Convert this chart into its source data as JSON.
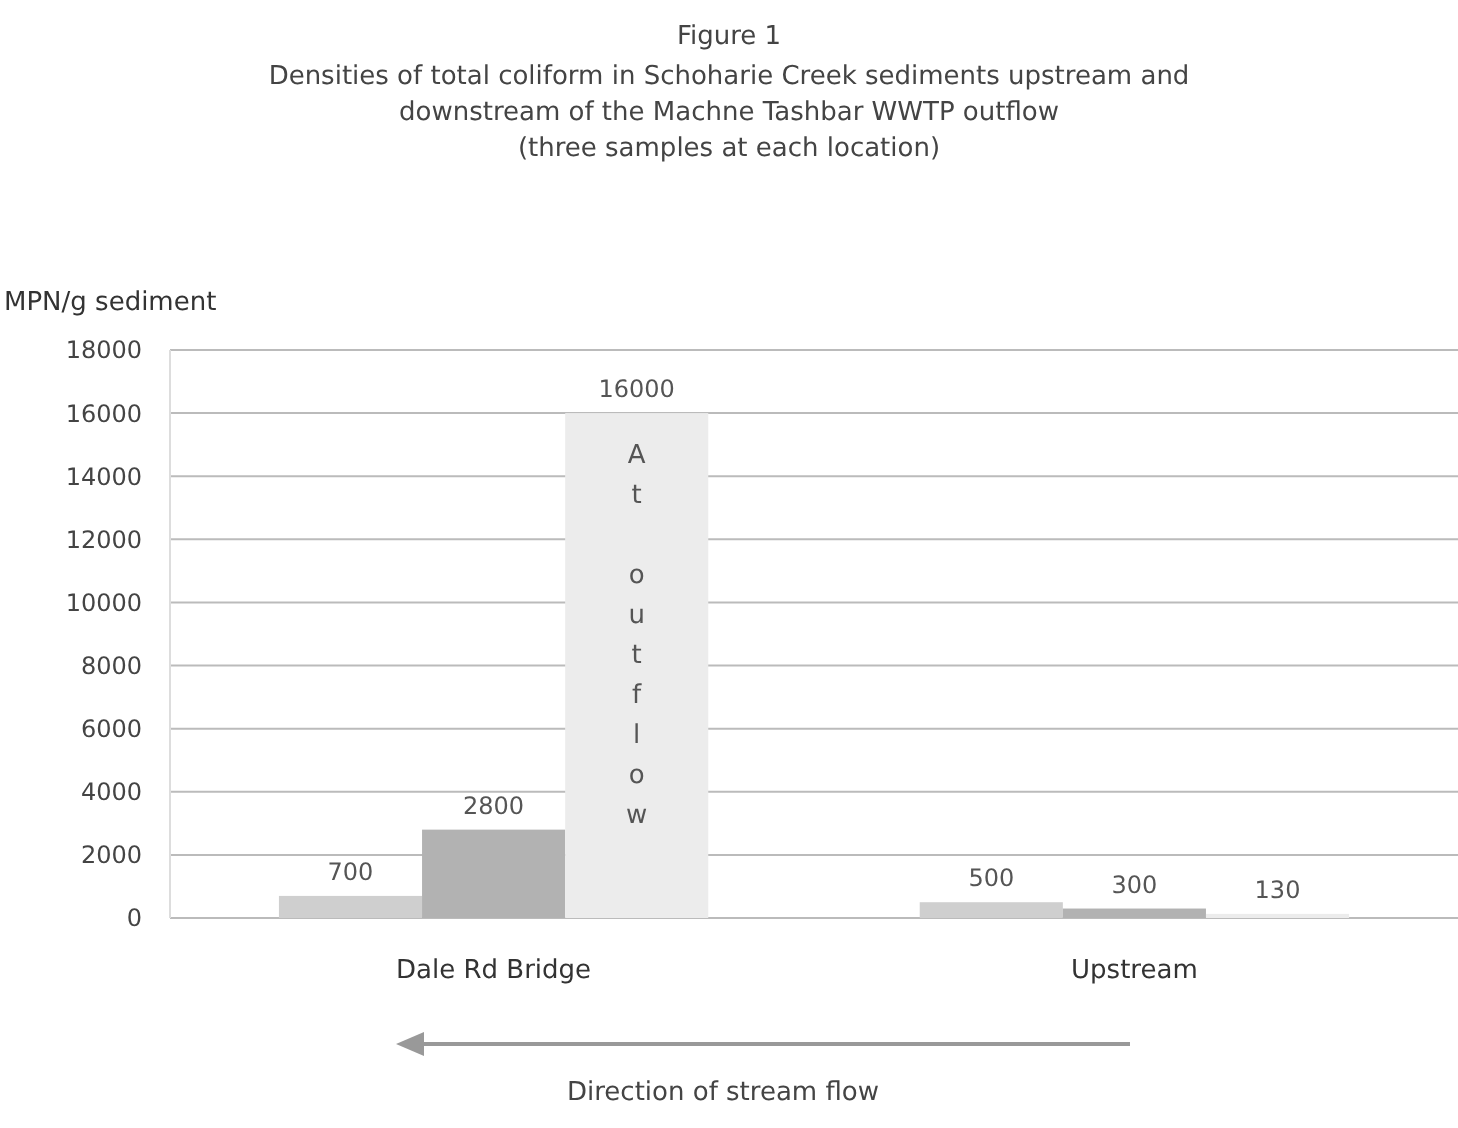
{
  "chart_data": {
    "type": "bar",
    "title": "Figure 1",
    "subtitle": "Densities of total coliform in Schoharie Creek sediments upstream and downstream of the Machne Tashbar WWTP outflow (three samples at each location)",
    "ylabel": "MPN/g sediment",
    "categories": [
      "Dale Rd Bridge",
      "Upstream"
    ],
    "series": [
      {
        "color": "#cfcfcf",
        "values": [
          700,
          500
        ]
      },
      {
        "color": "#b2b2b2",
        "values": [
          2800,
          300
        ]
      },
      {
        "color": "#ececec",
        "values": [
          16000,
          130
        ]
      }
    ],
    "ylim": [
      0,
      18000
    ],
    "yticks": [
      0,
      2000,
      4000,
      6000,
      8000,
      10000,
      12000,
      14000,
      16000,
      18000
    ],
    "grid": "y",
    "data_labels": true,
    "annotations": [
      "At outflow",
      "Direction of stream flow"
    ]
  }
}
